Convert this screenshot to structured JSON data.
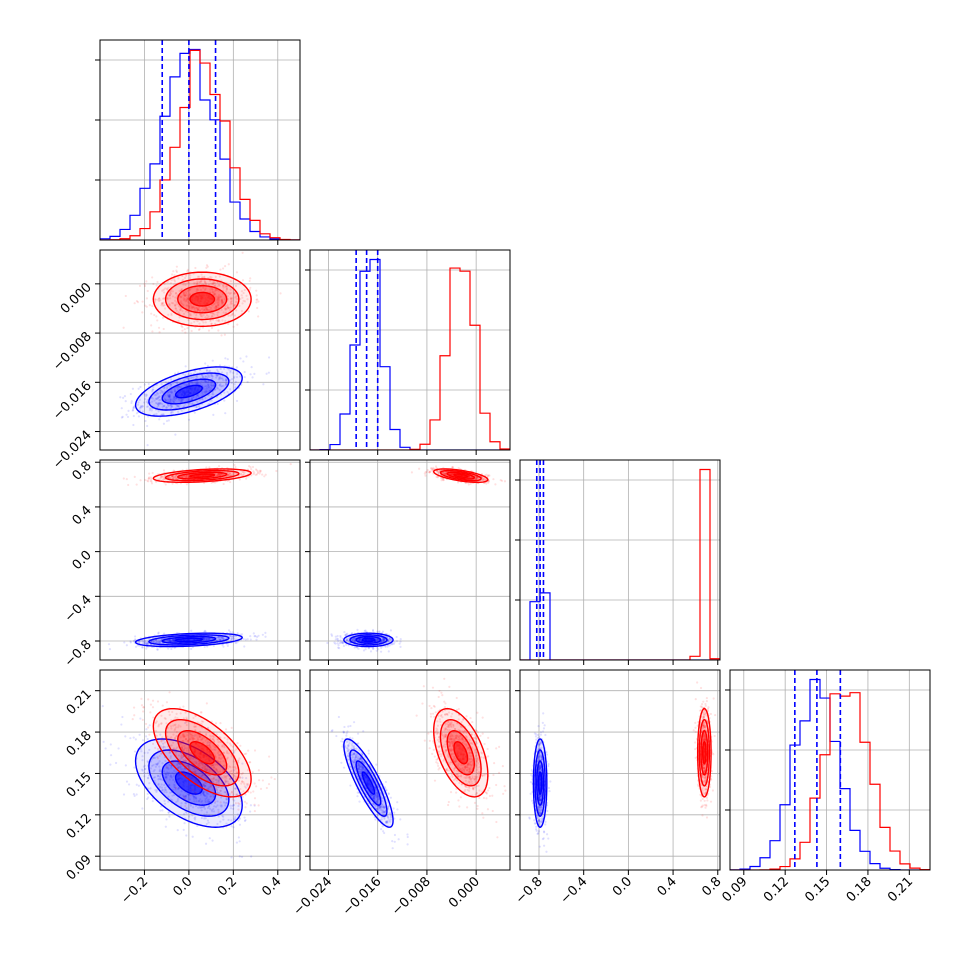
{
  "chart_data": {
    "type": "corner",
    "grid": true,
    "colors": {
      "series_a": "#0000ff",
      "series_b": "#ff0000"
    },
    "parameters": [
      {
        "index": 0,
        "range": [
          -0.4,
          0.5
        ],
        "ticks": [
          -0.2,
          0.0,
          0.2,
          0.4
        ],
        "tick_labels": [
          "−0.2",
          "0.0",
          "0.2",
          "0.4"
        ]
      },
      {
        "index": 1,
        "range": [
          -0.027,
          0.0055
        ],
        "ticks": [
          -0.024,
          -0.016,
          -0.008,
          0.0
        ],
        "tick_labels": [
          "−0.024",
          "−0.016",
          "−0.008",
          "0.000"
        ]
      },
      {
        "index": 2,
        "range": [
          -0.97,
          0.82
        ],
        "ticks": [
          -0.8,
          -0.4,
          0.0,
          0.4,
          0.8
        ],
        "tick_labels": [
          "−0.8",
          "−0.4",
          "0.0",
          "0.4",
          "0.8"
        ]
      },
      {
        "index": 3,
        "range": [
          0.08,
          0.225
        ],
        "ticks": [
          0.09,
          0.12,
          0.15,
          0.18,
          0.21
        ],
        "tick_labels": [
          "0.09",
          "0.12",
          "0.15",
          "0.18",
          "0.21"
        ]
      }
    ],
    "series": [
      {
        "color": "#0000ff",
        "quantiles": [
          [
            -0.12,
            0.0,
            0.12
          ],
          [
            -0.0195,
            -0.0178,
            -0.016
          ],
          [
            -0.82,
            -0.79,
            -0.76
          ],
          [
            0.127,
            0.143,
            0.16
          ]
        ],
        "mean": [
          0.0,
          -0.0175,
          -0.79,
          0.143
        ],
        "std": [
          0.12,
          0.002,
          0.03,
          0.016
        ],
        "corr": [
          [
            1,
            0.55,
            0.35,
            -0.5
          ],
          [
            0.55,
            1,
            0.0,
            -0.85
          ],
          [
            0.35,
            0.0,
            1,
            0.0
          ],
          [
            -0.5,
            -0.85,
            0.0,
            1
          ]
        ]
      },
      {
        "color": "#ff0000",
        "mean": [
          0.06,
          -0.0025,
          0.68,
          0.165
        ],
        "std": [
          0.11,
          0.0022,
          0.03,
          0.016
        ],
        "corr": [
          [
            1,
            0.0,
            0.4,
            -0.6
          ],
          [
            0.0,
            1,
            -0.6,
            -0.5
          ],
          [
            0.4,
            -0.6,
            1,
            0.0
          ],
          [
            -0.6,
            -0.5,
            0.0,
            1
          ]
        ]
      }
    ]
  }
}
